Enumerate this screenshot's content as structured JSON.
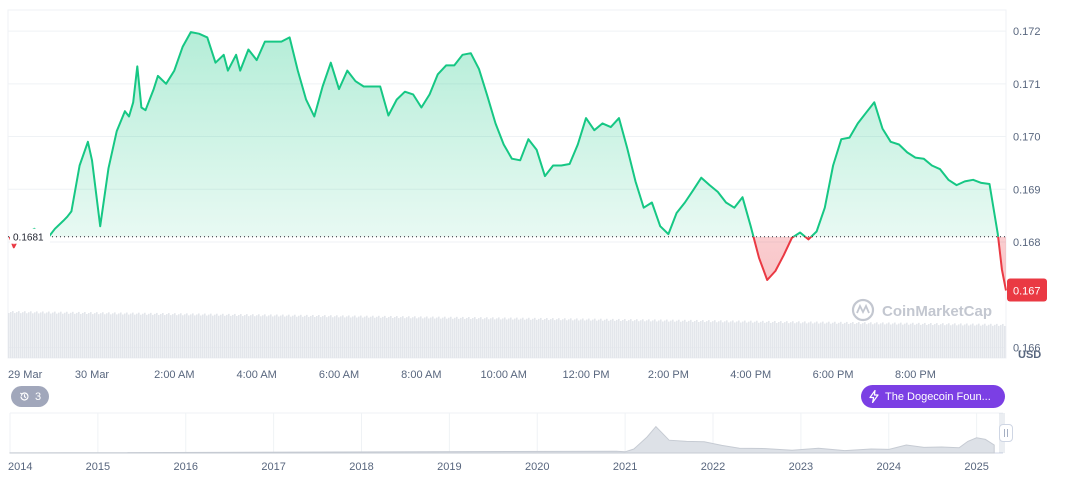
{
  "chart_data": {
    "type": "line",
    "ylabel": "USD",
    "y_ticks": [
      "0.172",
      "0.171",
      "0.170",
      "0.169",
      "0.168",
      "0.166"
    ],
    "ylim": [
      0.1658,
      0.1724
    ],
    "reference_label": "0.1681",
    "reference_value": 0.1681,
    "current_price_label": "0.167",
    "current_price": 0.16708,
    "x_ticks": [
      "29 Mar",
      "30 Mar",
      "2:00 AM",
      "4:00 AM",
      "6:00 AM",
      "8:00 AM",
      "10:00 AM",
      "12:00 PM",
      "2:00 PM",
      "4:00 PM",
      "6:00 PM",
      "8:00 PM"
    ],
    "x_tick_hours": [
      -2,
      0,
      2,
      4,
      6,
      8,
      10,
      12,
      14,
      16,
      18,
      20
    ],
    "x_range_hours": [
      -2.04,
      22.2
    ],
    "series": [
      {
        "x": [
          -2.0,
          -1.9,
          -1.8,
          -1.4,
          -1.1,
          -0.9,
          -0.7,
          -0.6,
          -0.5,
          -0.3,
          -0.1,
          0.0,
          0.2,
          0.4,
          0.6,
          0.8,
          0.9,
          1.0,
          1.1,
          1.2,
          1.3,
          1.5,
          1.6,
          1.8,
          2.0,
          2.2,
          2.4,
          2.6,
          2.8,
          3.0,
          3.2,
          3.3,
          3.5,
          3.6,
          3.8,
          4.0,
          4.2,
          4.4,
          4.6,
          4.8,
          5.0,
          5.2,
          5.4,
          5.6,
          5.8,
          6.0,
          6.2,
          6.4,
          6.6,
          6.8,
          7.0,
          7.2,
          7.4,
          7.6,
          7.8,
          8.0,
          8.2,
          8.4,
          8.6,
          8.8,
          9.0,
          9.2,
          9.4,
          9.6,
          9.8,
          10.0,
          10.2,
          10.4,
          10.6,
          10.8,
          11.0,
          11.2,
          11.4,
          11.6,
          11.8,
          12.0,
          12.2,
          12.4,
          12.6,
          12.8,
          13.0,
          13.2,
          13.4,
          13.6,
          13.8,
          14.0,
          14.2,
          14.4,
          14.6,
          14.8,
          15.0,
          15.2,
          15.4,
          15.6,
          15.8,
          16.0,
          16.2,
          16.4,
          16.6,
          16.8,
          17.0,
          17.2,
          17.4,
          17.6,
          17.8,
          18.0,
          18.2,
          18.4,
          18.6,
          18.8,
          19.0,
          19.2,
          19.4,
          19.6,
          19.8,
          20.0,
          20.2,
          20.4,
          20.6,
          20.8,
          21.0,
          21.2,
          21.4,
          21.6,
          21.8,
          22.0,
          22.1,
          22.2
        ],
        "y": [
          0.1681,
          0.1679,
          0.16805,
          0.16825,
          0.16805,
          0.16825,
          0.1684,
          0.16848,
          0.16858,
          0.16945,
          0.1699,
          0.16955,
          0.1683,
          0.1694,
          0.1701,
          0.17048,
          0.17038,
          0.17065,
          0.17133,
          0.17055,
          0.1705,
          0.1709,
          0.17115,
          0.171,
          0.17125,
          0.1717,
          0.17198,
          0.17195,
          0.17188,
          0.1714,
          0.17155,
          0.17125,
          0.17155,
          0.17125,
          0.17165,
          0.17145,
          0.1718,
          0.1718,
          0.1718,
          0.17188,
          0.17125,
          0.1707,
          0.17038,
          0.17095,
          0.1714,
          0.1709,
          0.17125,
          0.17105,
          0.17095,
          0.17095,
          0.17095,
          0.1704,
          0.1707,
          0.17085,
          0.1708,
          0.17055,
          0.1708,
          0.17118,
          0.17135,
          0.17135,
          0.17155,
          0.17158,
          0.17128,
          0.17078,
          0.17025,
          0.16985,
          0.16958,
          0.16955,
          0.16995,
          0.16975,
          0.16925,
          0.16945,
          0.16945,
          0.16948,
          0.16985,
          0.17035,
          0.17012,
          0.17025,
          0.17018,
          0.17035,
          0.16978,
          0.16915,
          0.16865,
          0.16875,
          0.1683,
          0.16815,
          0.16855,
          0.16875,
          0.16898,
          0.16922,
          0.16908,
          0.16895,
          0.16875,
          0.16865,
          0.16885,
          0.1683,
          0.1677,
          0.16728,
          0.16745,
          0.16775,
          0.16808,
          0.16818,
          0.16805,
          0.1682,
          0.16865,
          0.16945,
          0.16995,
          0.16998,
          0.17025,
          0.17045,
          0.17065,
          0.17015,
          0.1699,
          0.16985,
          0.1697,
          0.1696,
          0.16958,
          0.16945,
          0.16938,
          0.16918,
          0.16908,
          0.16915,
          0.16918,
          0.16912,
          0.1691,
          0.16815,
          0.16748,
          0.16708
        ]
      }
    ],
    "volume_note": "",
    "overview_x_ticks": [
      "2014",
      "2015",
      "2016",
      "2017",
      "2018",
      "2019",
      "2020",
      "2021",
      "2022",
      "2023",
      "2024",
      "2025"
    ],
    "overview_range_years": [
      2014,
      2025.3
    ],
    "overview": {
      "x": [
        2014.0,
        2020.9,
        2021.0,
        2021.1,
        2021.25,
        2021.35,
        2021.5,
        2021.7,
        2021.9,
        2022.1,
        2022.3,
        2022.6,
        2022.9,
        2023.2,
        2023.5,
        2023.8,
        2024.0,
        2024.2,
        2024.4,
        2024.6,
        2024.8,
        2024.9,
        2025.0,
        2025.1,
        2025.2
      ],
      "y": [
        0.003,
        0.005,
        0.03,
        0.06,
        0.4,
        0.62,
        0.32,
        0.25,
        0.28,
        0.15,
        0.12,
        0.07,
        0.07,
        0.08,
        0.06,
        0.06,
        0.09,
        0.16,
        0.14,
        0.11,
        0.13,
        0.25,
        0.38,
        0.3,
        0.2
      ]
    },
    "colors": {
      "up": "#16c784",
      "down": "#ea3943",
      "grid": "#eff2f5",
      "volume": "#e3e6eb"
    }
  },
  "watermark": {
    "brand": "CoinMarketCap"
  },
  "events_badge": {
    "count": "3"
  },
  "news_pill": {
    "label": "The Dogecoin Foun..."
  }
}
